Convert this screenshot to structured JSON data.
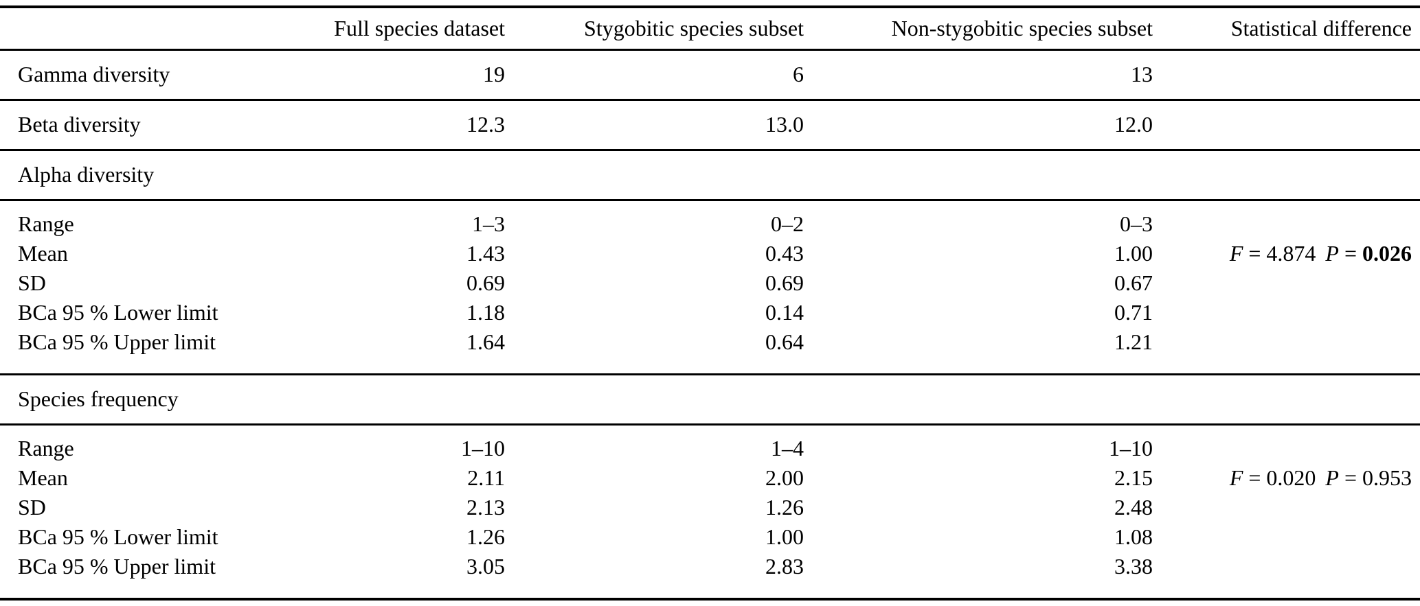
{
  "colors": {
    "ink": "#000000",
    "background": "#ffffff"
  },
  "table": {
    "header": {
      "row_label_column": "",
      "columns": [
        "Full species dataset",
        "Stygobitic species subset",
        "Non-stygobitic species subset",
        "Statistical difference"
      ]
    },
    "rows": [
      {
        "type": "data",
        "label": "Gamma diversity",
        "values": [
          "19",
          "6",
          "13"
        ]
      },
      {
        "type": "data",
        "label": "Beta diversity",
        "values": [
          "12.3",
          "13.0",
          "12.0"
        ]
      },
      {
        "type": "section",
        "label": "Alpha diversity"
      },
      {
        "type": "group",
        "rows": [
          {
            "label": "Range",
            "values": [
              "1–3",
              "0–2",
              "0–3"
            ]
          },
          {
            "label": "Mean",
            "values": [
              "1.43",
              "0.43",
              "1.00"
            ],
            "stat": {
              "f_label": "F",
              "f_eq": "=",
              "f_value": "4.874",
              "p_label": "P",
              "p_eq": "=",
              "p_value": "0.026",
              "p_bold": true
            }
          },
          {
            "label": "SD",
            "values": [
              "0.69",
              "0.69",
              "0.67"
            ]
          },
          {
            "label": "BCa 95 % Lower limit",
            "values": [
              "1.18",
              "0.14",
              "0.71"
            ]
          },
          {
            "label": "BCa 95 % Upper limit",
            "values": [
              "1.64",
              "0.64",
              "1.21"
            ]
          }
        ]
      },
      {
        "type": "section",
        "label": "Species frequency"
      },
      {
        "type": "group",
        "rows": [
          {
            "label": "Range",
            "values": [
              "1–10",
              "1–4",
              "1–10"
            ]
          },
          {
            "label": "Mean",
            "values": [
              "2.11",
              "2.00",
              "2.15"
            ],
            "stat": {
              "f_label": "F",
              "f_eq": "=",
              "f_value": "0.020",
              "p_label": "P",
              "p_eq": "=",
              "p_value": "0.953",
              "p_bold": false
            }
          },
          {
            "label": "SD",
            "values": [
              "2.13",
              "1.26",
              "2.48"
            ]
          },
          {
            "label": "BCa 95 % Lower limit",
            "values": [
              "1.26",
              "1.00",
              "1.08"
            ]
          },
          {
            "label": "BCa 95 % Upper limit",
            "values": [
              "3.05",
              "2.83",
              "3.38"
            ]
          }
        ]
      }
    ]
  }
}
